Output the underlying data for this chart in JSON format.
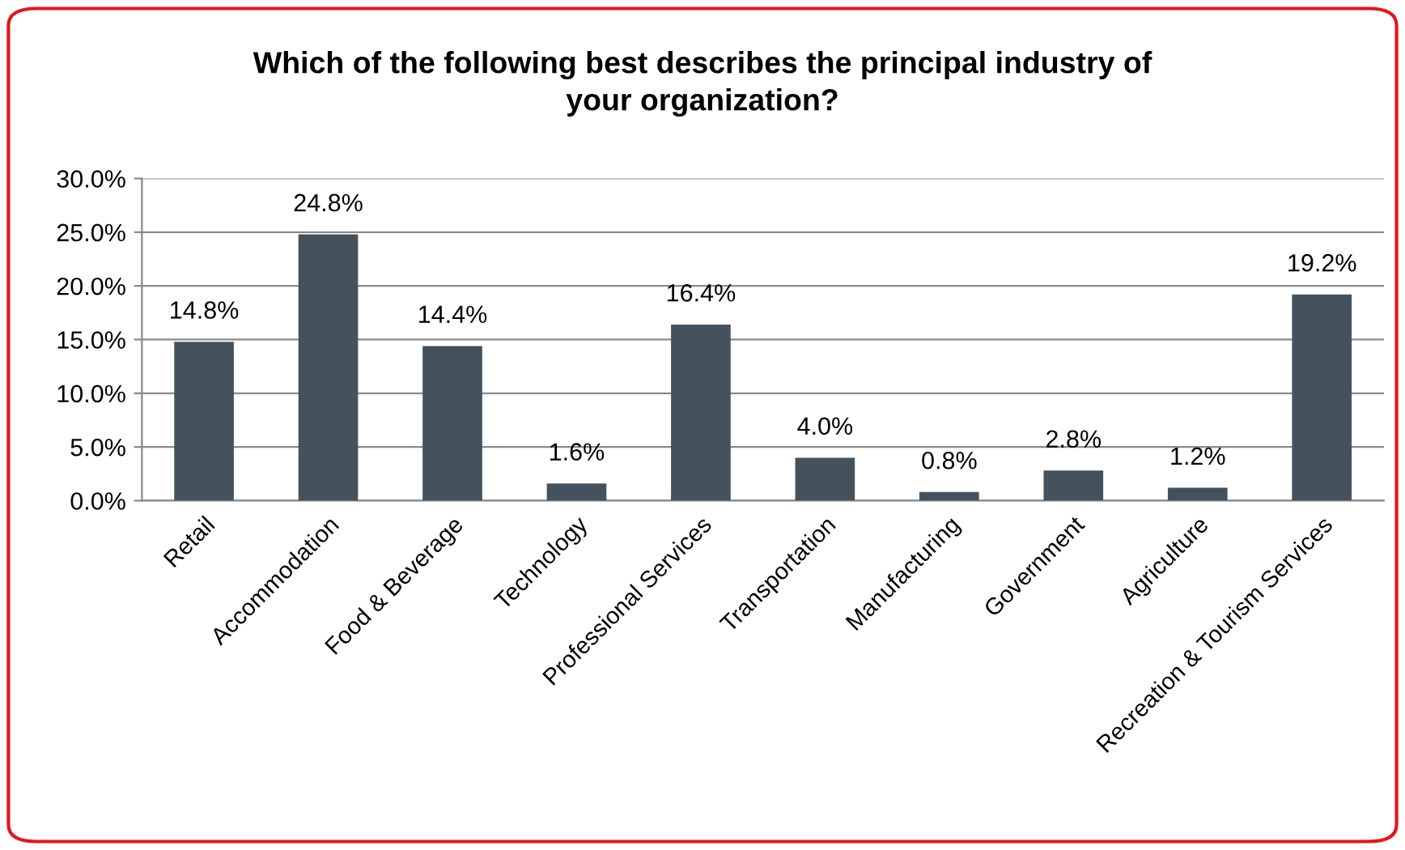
{
  "chart_data": {
    "type": "bar",
    "title": "Which of the following best describes the principal industry of\nyour organization?",
    "categories": [
      "Retail",
      "Accommodation",
      "Food & Beverage",
      "Technology",
      "Professional Services",
      "Transportation",
      "Manufacturing",
      "Government",
      "Agriculture",
      "Recreation & Tourism Services"
    ],
    "values": [
      14.8,
      24.8,
      14.4,
      1.6,
      16.4,
      4.0,
      0.8,
      2.8,
      1.2,
      19.2
    ],
    "value_labels": [
      "14.8%",
      "24.8%",
      "14.4%",
      "1.6%",
      "16.4%",
      "4.0%",
      "0.8%",
      "2.8%",
      "1.2%",
      "19.2%"
    ],
    "color": "#44525e",
    "ylim": [
      0,
      30
    ],
    "yticks": [
      {
        "value": 0,
        "label": "0.0%"
      },
      {
        "value": 5,
        "label": "5.0%"
      },
      {
        "value": 10,
        "label": "10.0%"
      },
      {
        "value": 15,
        "label": "15.0%"
      },
      {
        "value": 20,
        "label": "20.0%"
      },
      {
        "value": 25,
        "label": "25.0%"
      },
      {
        "value": 30,
        "label": "30.0%"
      }
    ],
    "grid": "y",
    "legend": false
  }
}
